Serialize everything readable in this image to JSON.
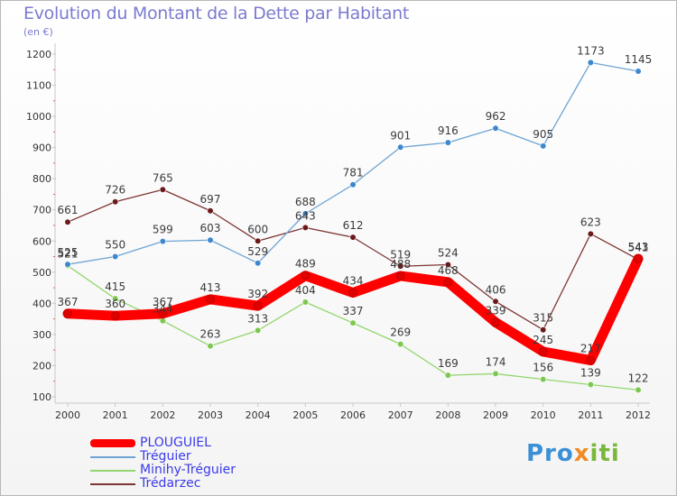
{
  "header": {
    "title": "Evolution du Montant de la Dette par Habitant",
    "subtitle": "(en €)"
  },
  "logo": {
    "text": "Proxiti"
  },
  "chart_data": {
    "type": "line",
    "title": "Evolution du Montant de la Dette par Habitant",
    "subtitle": "(en €)",
    "xlabel": "",
    "ylabel": "",
    "x": [
      "2000",
      "2001",
      "2002",
      "2003",
      "2004",
      "2005",
      "2006",
      "2007",
      "2008",
      "2009",
      "2010",
      "2011",
      "2012"
    ],
    "ylim": [
      100,
      1200
    ],
    "yticks": [
      100,
      200,
      300,
      400,
      500,
      600,
      700,
      800,
      900,
      1000,
      1100,
      1200
    ],
    "grid": false,
    "legend_position": "bottom-left",
    "series": [
      {
        "name": "PLOUGUIEL",
        "color": "#ff0000",
        "marker": "#e00000",
        "values": [
          367,
          360,
          367,
          413,
          392,
          489,
          434,
          488,
          468,
          339,
          245,
          217,
          543
        ]
      },
      {
        "name": "Tréguier",
        "color": "#6da4d4",
        "marker": "#3d88cc",
        "values": [
          525,
          550,
          599,
          603,
          529,
          688,
          781,
          901,
          916,
          962,
          905,
          1173,
          1145
        ]
      },
      {
        "name": "Minihy-Tréguier",
        "color": "#92d66e",
        "marker": "#7cc84e",
        "values": [
          521,
          415,
          344,
          263,
          313,
          404,
          337,
          269,
          169,
          174,
          156,
          139,
          122
        ]
      },
      {
        "name": "Trédarzec",
        "color": "#7e3535",
        "marker": "#6a1a1a",
        "values": [
          661,
          726,
          765,
          697,
          600,
          643,
          612,
          519,
          524,
          406,
          315,
          623,
          541
        ]
      }
    ]
  }
}
